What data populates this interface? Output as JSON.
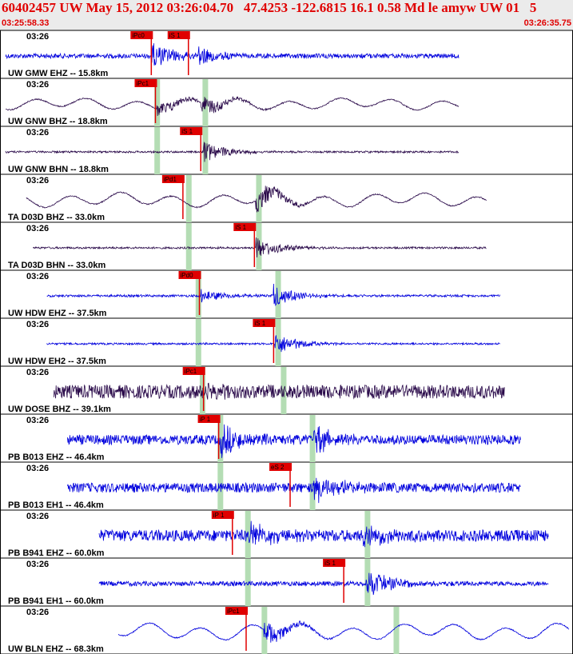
{
  "header": {
    "title": "60402457 UW May 15, 2012 03:26:04.70   47.4253 -122.6815 16.1 0.58 Md le amyw UW 01   5",
    "start_time": "03:25:58.33",
    "end_time": "03:26:35.75"
  },
  "colors": {
    "header_bg": "#ebebeb",
    "header_text": "#e00000",
    "trace_blue": "#0000dd",
    "trace_purple": "#2a0a4a",
    "pick_red": "#e00000",
    "theoretical_green": "#b4ddb4"
  },
  "chart_data": {
    "type": "seismogram",
    "time_range": [
      "03:25:58.33",
      "03:26:35.75"
    ],
    "panel_time_label": "03:26",
    "traces": [
      {
        "label": "UW GMW EHZ -- 15.8km",
        "color": "blue",
        "t_start": 0.0,
        "t_end": 33.0,
        "amp": 0.12,
        "style": "noise",
        "picks": [
          {
            "name": "iPc0",
            "t": 10.6,
            "green": false
          },
          {
            "name": "iS 1",
            "t": 13.3,
            "green": false
          }
        ],
        "green_marks": [],
        "onsets": [
          {
            "t": 10.6,
            "amp": 0.7
          },
          {
            "t": 14.0,
            "amp": 0.55
          }
        ]
      },
      {
        "label": "UW GNW BHZ -- 18.8km",
        "color": "purple",
        "t_start": 0.0,
        "t_end": 33.0,
        "amp": 0.25,
        "style": "wave",
        "picks": [
          {
            "name": "iPc1",
            "t": 10.9,
            "green": false
          }
        ],
        "green_marks": [
          11.0,
          14.5
        ],
        "onsets": [
          {
            "t": 11.0,
            "amp": 0.5
          },
          {
            "t": 14.2,
            "amp": 0.6
          }
        ]
      },
      {
        "label": "UW GNW BHN -- 18.8km",
        "color": "purple",
        "t_start": 0.0,
        "t_end": 33.0,
        "amp": 0.05,
        "style": "noise",
        "picks": [
          {
            "name": "iS 1",
            "t": 14.2,
            "green": false
          }
        ],
        "green_marks": [
          11.0,
          14.5
        ],
        "onsets": [
          {
            "t": 14.4,
            "amp": 0.6
          }
        ]
      },
      {
        "label": "TA D03D BHZ -- 33.0km",
        "color": "purple",
        "t_start": 1.5,
        "t_end": 35.0,
        "amp": 0.3,
        "style": "wave",
        "picks": [
          {
            "name": "iPd1",
            "t": 12.9,
            "green": false
          }
        ],
        "green_marks": [
          13.3,
          18.4
        ],
        "onsets": [
          {
            "t": 18.2,
            "amp": 0.75
          }
        ]
      },
      {
        "label": "TA D03D BHN -- 33.0km",
        "color": "purple",
        "t_start": 2.0,
        "t_end": 35.0,
        "amp": 0.05,
        "style": "noise",
        "picks": [
          {
            "name": "iS 1",
            "t": 18.1,
            "green": false
          }
        ],
        "green_marks": [
          13.3,
          18.4
        ],
        "onsets": [
          {
            "t": 18.2,
            "amp": 0.6
          }
        ]
      },
      {
        "label": "UW HDW EHZ -- 37.5km",
        "color": "blue",
        "t_start": 3.0,
        "t_end": 36.0,
        "amp": 0.06,
        "style": "noise",
        "picks": [
          {
            "name": "iPd0",
            "t": 14.1,
            "green": false
          }
        ],
        "green_marks": [
          14.0,
          19.8
        ],
        "onsets": [
          {
            "t": 14.2,
            "amp": 0.4
          },
          {
            "t": 19.5,
            "amp": 0.6
          }
        ]
      },
      {
        "label": "UW HDW EH2 -- 37.5km",
        "color": "blue",
        "t_start": 3.0,
        "t_end": 36.0,
        "amp": 0.05,
        "style": "noise",
        "picks": [
          {
            "name": "iS 1",
            "t": 19.5,
            "green": false
          }
        ],
        "green_marks": [
          14.0,
          19.8
        ],
        "onsets": [
          {
            "t": 19.6,
            "amp": 0.6
          }
        ]
      },
      {
        "label": "UW DOSE BHZ -- 39.1km",
        "color": "purple",
        "t_start": 3.5,
        "t_end": 36.3,
        "amp": 0.35,
        "style": "noise",
        "picks": [
          {
            "name": "iPc1",
            "t": 14.4,
            "green": false
          }
        ],
        "green_marks": [
          14.3,
          20.2
        ],
        "onsets": [
          {
            "t": 14.4,
            "amp": 0.5
          }
        ]
      },
      {
        "label": "PB B013 EHZ -- 46.4km",
        "color": "blue",
        "t_start": 4.5,
        "t_end": 37.5,
        "amp": 0.25,
        "style": "noise",
        "picks": [
          {
            "name": "iP 1",
            "t": 15.5,
            "green": false
          }
        ],
        "green_marks": [
          15.6,
          22.3
        ],
        "onsets": [
          {
            "t": 15.6,
            "amp": 0.85
          },
          {
            "t": 22.4,
            "amp": 0.7
          }
        ]
      },
      {
        "label": "PB B013 EH1 -- 46.4km",
        "color": "blue",
        "t_start": 4.5,
        "t_end": 37.5,
        "amp": 0.25,
        "style": "noise",
        "picks": [
          {
            "name": "eS 2",
            "t": 20.7,
            "green": false
          }
        ],
        "green_marks": [
          15.6,
          22.3
        ],
        "onsets": [
          {
            "t": 22.4,
            "amp": 0.8
          }
        ]
      },
      {
        "label": "PB B941 EHZ -- 60.0km",
        "color": "blue",
        "t_start": 6.8,
        "t_end": 39.5,
        "amp": 0.3,
        "style": "noise",
        "picks": [
          {
            "name": "iP 1",
            "t": 16.5,
            "green": false
          }
        ],
        "green_marks": [
          17.6,
          26.3
        ],
        "onsets": [
          {
            "t": 17.7,
            "amp": 0.6
          },
          {
            "t": 26.0,
            "amp": 0.8
          }
        ]
      },
      {
        "label": "PB B941 EH1 -- 60.0km",
        "color": "blue",
        "t_start": 6.8,
        "t_end": 39.5,
        "amp": 0.12,
        "style": "noise",
        "picks": [
          {
            "name": "iS 1",
            "t": 24.6,
            "green": false
          }
        ],
        "green_marks": [
          17.6,
          26.3
        ],
        "onsets": [
          {
            "t": 26.2,
            "amp": 0.85
          }
        ]
      },
      {
        "label": "UW BLN EHZ -- 68.3km",
        "color": "blue",
        "t_start": 8.2,
        "t_end": 41.0,
        "amp": 0.35,
        "style": "wave",
        "picks": [
          {
            "name": "iPc1",
            "t": 17.5,
            "green": false
          }
        ],
        "green_marks": [
          18.8,
          28.4
        ],
        "onsets": [
          {
            "t": 18.8,
            "amp": 0.7
          }
        ]
      }
    ]
  }
}
